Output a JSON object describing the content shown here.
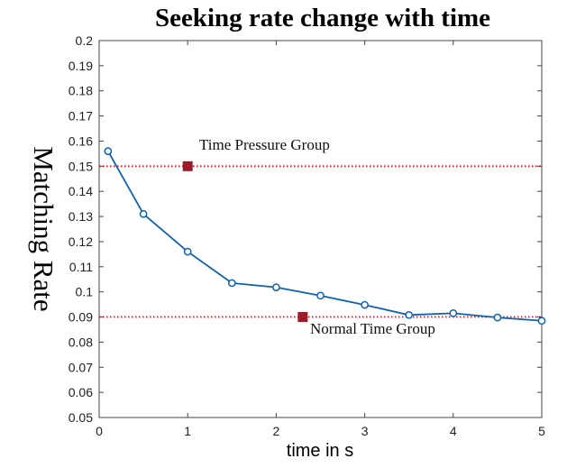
{
  "chart_data": {
    "type": "line",
    "title": "Seeking rate change with time",
    "xlabel": "time in s",
    "ylabel": "Matching Rate",
    "xlim": [
      0,
      5
    ],
    "ylim": [
      0.05,
      0.2
    ],
    "xticks": [
      0,
      1,
      2,
      3,
      4,
      5
    ],
    "xtick_labels": [
      "0",
      "1",
      "2",
      "3",
      "4",
      "5"
    ],
    "yticks": [
      0.05,
      0.06,
      0.07,
      0.08,
      0.09,
      0.1,
      0.11,
      0.12,
      0.13,
      0.14,
      0.15,
      0.16,
      0.17,
      0.18,
      0.19,
      0.2
    ],
    "ytick_labels": [
      "0.05",
      "0.06",
      "0.07",
      "0.08",
      "0.09",
      "0.1",
      "0.11",
      "0.12",
      "0.13",
      "0.14",
      "0.15",
      "0.16",
      "0.17",
      "0.18",
      "0.19",
      "0.2"
    ],
    "grid": false,
    "series": [
      {
        "name": "Matching rate",
        "color": "#0e62b0",
        "marker": "circle",
        "x": [
          0.1,
          0.5,
          1.0,
          1.5,
          2.0,
          2.5,
          3.0,
          3.5,
          4.0,
          4.5,
          5.0
        ],
        "y": [
          0.156,
          0.131,
          0.116,
          0.1035,
          0.1018,
          0.0985,
          0.0948,
          0.0908,
          0.0915,
          0.0898,
          0.0885
        ]
      }
    ],
    "reference_lines": [
      {
        "name": "Time Pressure Group",
        "y": 0.15,
        "color": "#d0101a",
        "style": "dotted"
      },
      {
        "name": "Normal Time Group",
        "y": 0.09,
        "color": "#d0101a",
        "style": "dotted"
      }
    ],
    "annotations": [
      {
        "text": "Time Pressure Group",
        "marker_x": 1.0,
        "marker_y": 0.15,
        "marker_color": "#9b1b2a"
      },
      {
        "text": "Normal Time Group",
        "marker_x": 2.3,
        "marker_y": 0.09,
        "marker_color": "#9b1b2a"
      }
    ]
  }
}
